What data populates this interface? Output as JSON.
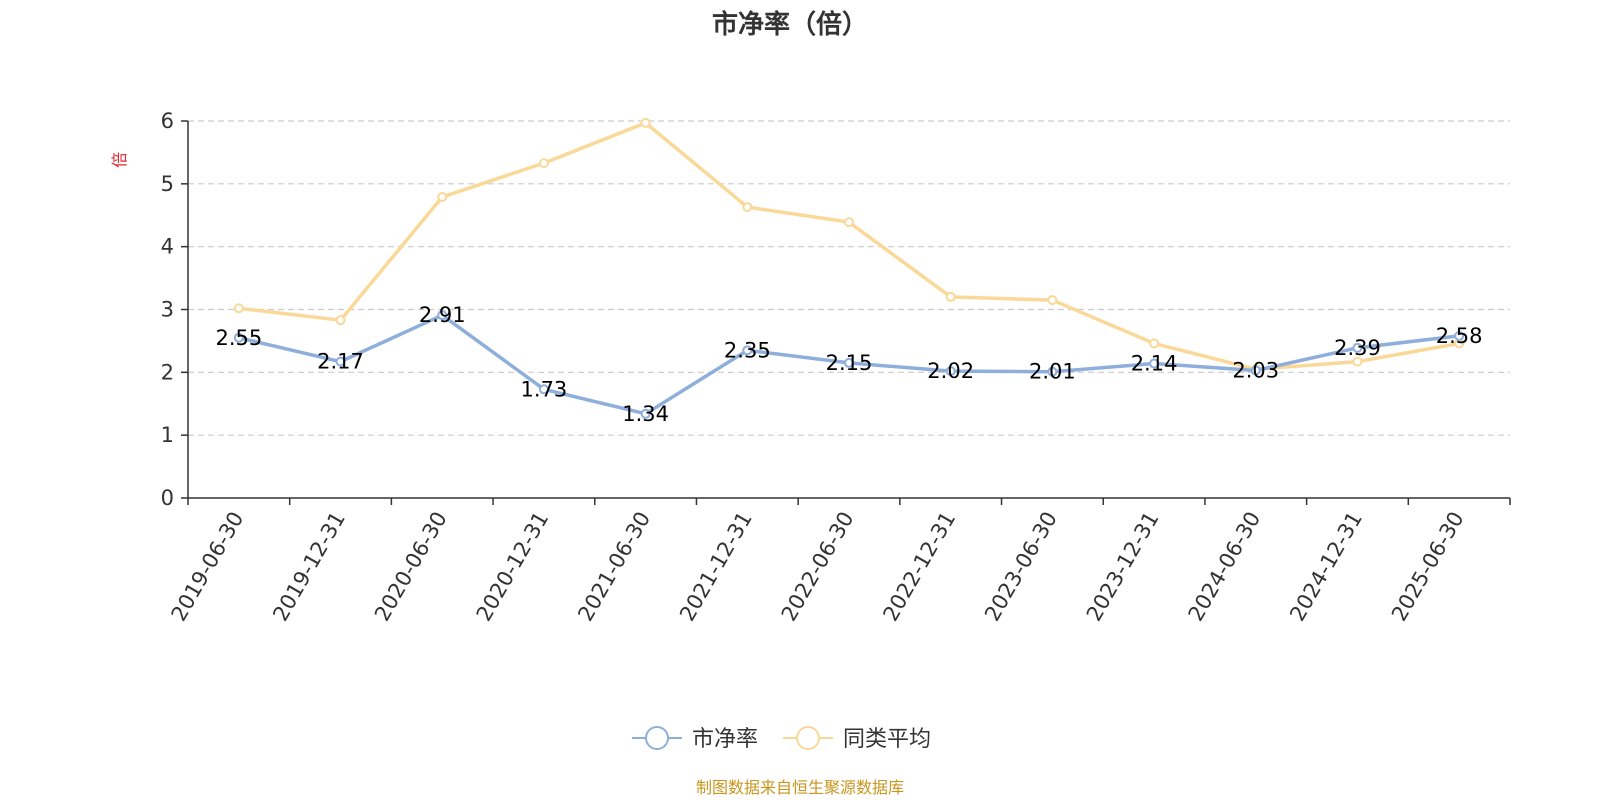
{
  "chart_data": {
    "type": "line",
    "title": "市净率（倍）",
    "ylabel": "倍",
    "ylim": [
      0,
      6
    ],
    "yticks": [
      0,
      1,
      2,
      3,
      4,
      5,
      6
    ],
    "grid": true,
    "legend_position": "bottom-center",
    "categories": [
      "2019-06-30",
      "2019-12-31",
      "2020-06-30",
      "2020-12-31",
      "2021-06-30",
      "2021-12-31",
      "2022-06-30",
      "2022-12-31",
      "2023-06-30",
      "2023-12-31",
      "2024-06-30",
      "2024-12-31",
      "2025-06-30"
    ],
    "series": [
      {
        "name": "市净率",
        "color": "#8eaedb",
        "values": [
          2.55,
          2.17,
          2.91,
          1.73,
          1.34,
          2.35,
          2.15,
          2.02,
          2.01,
          2.14,
          2.03,
          2.39,
          2.58
        ],
        "labels": [
          "2.55",
          "2.17",
          "2.91",
          "1.73",
          "1.34",
          "2.35",
          "2.15",
          "2.02",
          "2.01",
          "2.14",
          "2.03",
          "2.39",
          "2.58"
        ]
      },
      {
        "name": "同类平均",
        "color": "#fad897",
        "values": [
          3.02,
          2.83,
          4.79,
          5.33,
          5.97,
          4.63,
          4.39,
          3.2,
          3.15,
          2.46,
          2.05,
          2.17,
          2.46
        ]
      }
    ],
    "source_note": "制图数据来自恒生聚源数据库"
  },
  "colors": {
    "axis": "#333333",
    "grid": "#cccccc",
    "ylabel": "#e0262c",
    "source": "#c8961e"
  }
}
